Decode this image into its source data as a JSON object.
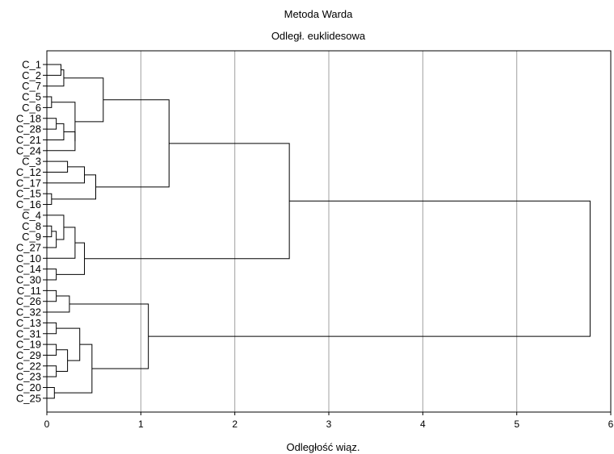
{
  "chart_data": {
    "type": "dendrogram",
    "title": "Metoda Warda",
    "subtitle": "Odległ. euklidesowa",
    "xlabel": "Odległość wiąz.",
    "xlim": [
      0,
      6
    ],
    "xticks": [
      "0",
      "1",
      "2",
      "3",
      "4",
      "5",
      "6"
    ],
    "grid": true,
    "leaves": [
      "C_1",
      "C_2",
      "C_7",
      "C_5",
      "C_6",
      "C_18",
      "C_28",
      "C_21",
      "C_24",
      "C_3",
      "C_12",
      "C_17",
      "C_15",
      "C_16",
      "C_4",
      "C_8",
      "C_9",
      "C_27",
      "C_10",
      "C_14",
      "C_30",
      "C_11",
      "C_26",
      "C_32",
      "C_13",
      "C_31",
      "C_19",
      "C_29",
      "C_22",
      "C_23",
      "C_20",
      "C_25"
    ],
    "merges": [
      {
        "a": "C_1",
        "b": "C_2",
        "height": 0.15
      },
      {
        "a": "m1",
        "b": "C_7",
        "height": 0.18
      },
      {
        "a": "C_5",
        "b": "C_6",
        "height": 0.05
      },
      {
        "a": "C_18",
        "b": "C_28",
        "height": 0.1
      },
      {
        "a": "m4",
        "b": "C_21",
        "height": 0.18
      },
      {
        "a": "m5",
        "b": "C_24",
        "height": 0.3
      },
      {
        "a": "m3",
        "b": "m6",
        "height": 0.3
      },
      {
        "a": "m2",
        "b": "m7",
        "height": 0.6
      },
      {
        "a": "C_3",
        "b": "C_12",
        "height": 0.22
      },
      {
        "a": "m9",
        "b": "C_17",
        "height": 0.4
      },
      {
        "a": "C_15",
        "b": "C_16",
        "height": 0.05
      },
      {
        "a": "m10",
        "b": "m11",
        "height": 0.52
      },
      {
        "a": "m8",
        "b": "m12",
        "height": 1.3
      },
      {
        "a": "C_8",
        "b": "C_9",
        "height": 0.05
      },
      {
        "a": "m14",
        "b": "C_27",
        "height": 0.1
      },
      {
        "a": "C_4",
        "b": "m15",
        "height": 0.18
      },
      {
        "a": "m16",
        "b": "C_10",
        "height": 0.3
      },
      {
        "a": "C_14",
        "b": "C_30",
        "height": 0.1
      },
      {
        "a": "m17",
        "b": "m18",
        "height": 0.4
      },
      {
        "a": "m13",
        "b": "m19",
        "height": 2.58
      },
      {
        "a": "C_11",
        "b": "C_26",
        "height": 0.1
      },
      {
        "a": "m21",
        "b": "C_32",
        "height": 0.24
      },
      {
        "a": "C_13",
        "b": "C_31",
        "height": 0.1
      },
      {
        "a": "C_19",
        "b": "C_29",
        "height": 0.1
      },
      {
        "a": "C_22",
        "b": "C_23",
        "height": 0.1
      },
      {
        "a": "m24",
        "b": "m25",
        "height": 0.22
      },
      {
        "a": "m23",
        "b": "m26",
        "height": 0.35
      },
      {
        "a": "C_20",
        "b": "C_25",
        "height": 0.08
      },
      {
        "a": "m27",
        "b": "m28",
        "height": 0.48
      },
      {
        "a": "m22",
        "b": "m29",
        "height": 1.08
      },
      {
        "a": "m20",
        "b": "m30",
        "height": 5.78
      }
    ]
  }
}
